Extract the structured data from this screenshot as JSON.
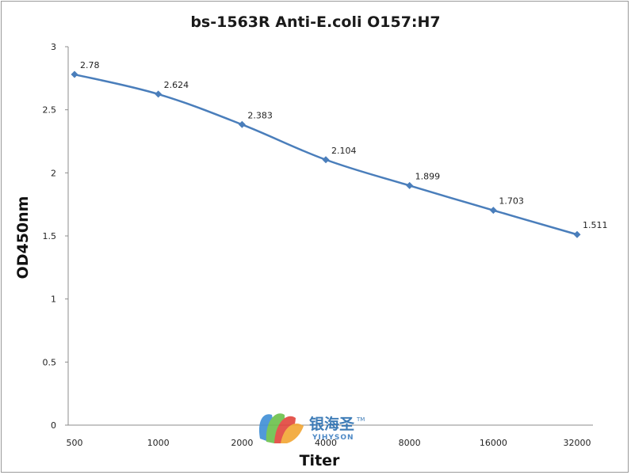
{
  "chart_data": {
    "type": "line",
    "title": "bs-1563R Anti-E.coli O157:H7",
    "xlabel": "Titer",
    "ylabel": "OD450nm",
    "categories": [
      "500",
      "1000",
      "2000",
      "4000",
      "8000",
      "16000",
      "32000"
    ],
    "series": [
      {
        "values": [
          2.78,
          2.624,
          2.383,
          2.104,
          1.899,
          1.703,
          1.511
        ],
        "labels": [
          "2.78",
          "2.624",
          "2.383",
          "2.104",
          "1.899",
          "1.703",
          "1.511"
        ],
        "color": "#4a7ebb"
      }
    ],
    "ylim": [
      0,
      3
    ],
    "yticks": [
      0,
      0.5,
      1,
      1.5,
      2,
      2.5,
      3
    ],
    "ytick_labels": [
      "0",
      "0.5",
      "1",
      "1.5",
      "2",
      "2.5",
      "3"
    ],
    "grid": false,
    "legend": "none",
    "marker": "diamond"
  },
  "watermark": {
    "name_cn": "银海圣",
    "name_en": "YIHYSON",
    "tm": "TM",
    "colors": [
      "#3f8fd6",
      "#6bc04b",
      "#e2453c",
      "#f2a633"
    ]
  }
}
